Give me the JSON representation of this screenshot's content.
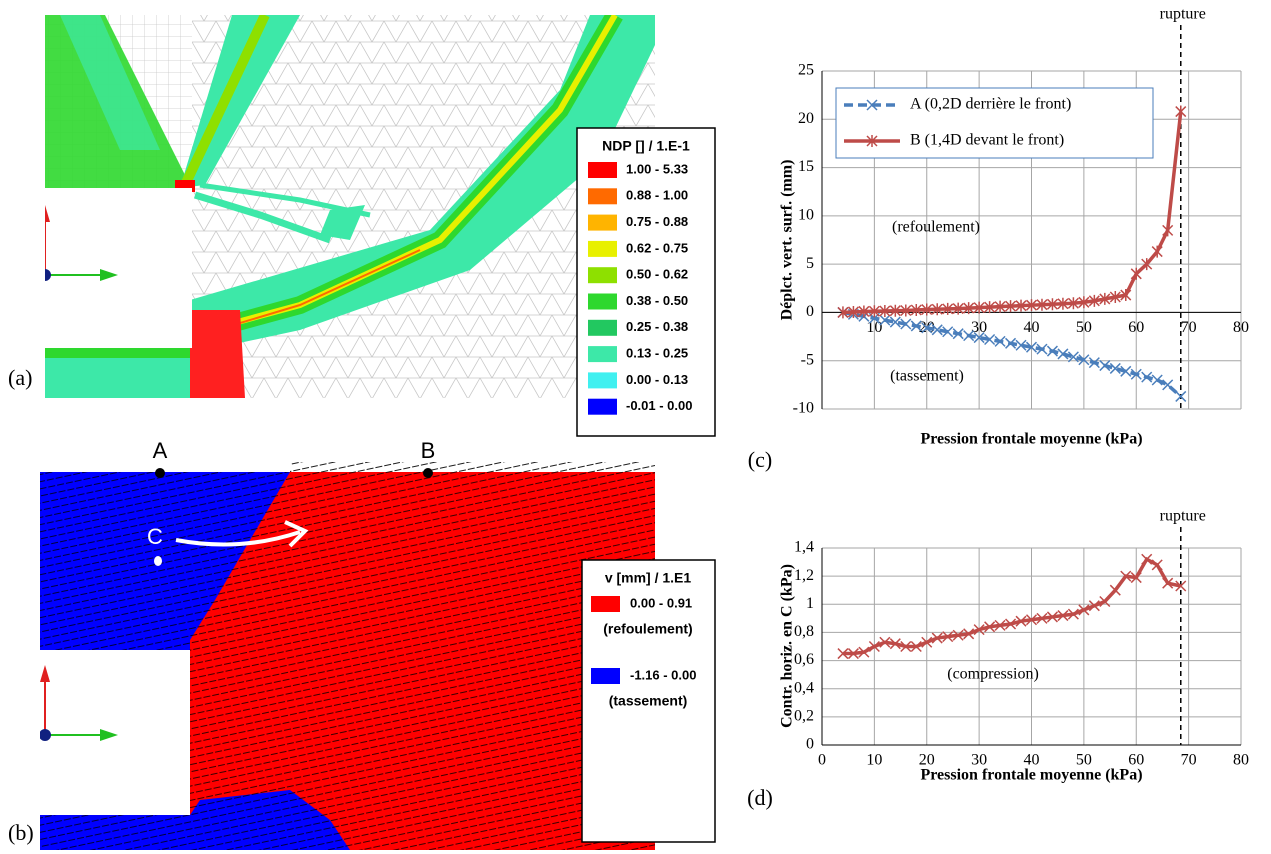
{
  "panels": [
    {
      "label": "(a)",
      "legend": {
        "title": "NDP [] / 1.E-1",
        "entries": [
          {
            "range": "1.00 - 5.33",
            "color": "#ff0000"
          },
          {
            "range": "0.88 - 1.00",
            "color": "#ff6a00"
          },
          {
            "range": "0.75 - 0.88",
            "color": "#ffb400"
          },
          {
            "range": "0.62 - 0.75",
            "color": "#e8f000"
          },
          {
            "range": "0.50 - 0.62",
            "color": "#8ee000"
          },
          {
            "range": "0.38 - 0.50",
            "color": "#2ed82e"
          },
          {
            "range": "0.25 - 0.38",
            "color": "#22c860"
          },
          {
            "range": "0.13 - 0.25",
            "color": "#3de8a8"
          },
          {
            "range": "0.00 - 0.13",
            "color": "#40f0f0"
          },
          {
            "range": "-0.01 - 0.00",
            "color": "#0000ff"
          }
        ]
      }
    },
    {
      "label": "(b)",
      "points": [
        "A",
        "B",
        "C"
      ],
      "legend": {
        "title": "v [mm] / 1.E1",
        "entries": [
          {
            "range": "0.00 - 0.91",
            "note": "(refoulement)",
            "color": "#ff0000"
          },
          {
            "range": "-1.16 - 0.00",
            "note": "(tassement)",
            "color": "#0000ff"
          }
        ]
      }
    }
  ],
  "chart_data": [
    {
      "type": "line",
      "panel_label": "(c)",
      "x_label": "Pression frontale moyenne (kPa)",
      "y_label": "Déplct. vert. surf. (mm)",
      "xlim": [
        0,
        80
      ],
      "xticks": [
        10,
        20,
        30,
        40,
        50,
        60,
        70,
        80
      ],
      "ylim": [
        -10,
        25
      ],
      "yticks": [
        -10,
        -5,
        0,
        5,
        10,
        15,
        20,
        25
      ],
      "grid": true,
      "legend": "upper left",
      "vline": {
        "x": 68.5,
        "label": "rupture"
      },
      "annotations": [
        "(refoulement)",
        "(tassement)"
      ],
      "x": [
        4,
        6,
        8,
        10,
        12,
        14,
        16,
        18,
        20,
        22,
        24,
        26,
        28,
        30,
        32,
        34,
        36,
        38,
        40,
        42,
        44,
        46,
        48,
        50,
        52,
        54,
        56,
        58,
        60,
        62,
        64,
        66,
        68.5
      ],
      "series": [
        {
          "name": "A (0,2D derrière le front)",
          "color": "#4a7ebb",
          "dashed": true,
          "marker": "x",
          "values": [
            0,
            -0.2,
            -0.4,
            -0.6,
            -0.8,
            -1.0,
            -1.2,
            -1.4,
            -1.6,
            -1.8,
            -2.0,
            -2.2,
            -2.4,
            -2.6,
            -2.8,
            -3.0,
            -3.2,
            -3.4,
            -3.6,
            -3.8,
            -4.0,
            -4.3,
            -4.6,
            -4.9,
            -5.2,
            -5.5,
            -5.8,
            -6.1,
            -6.4,
            -6.7,
            -7.0,
            -7.5,
            -8.7
          ]
        },
        {
          "name": "B (1,4D devant le front)",
          "color": "#be4b48",
          "dashed": false,
          "marker": "star",
          "values": [
            0,
            0.05,
            0.1,
            0.12,
            0.15,
            0.18,
            0.2,
            0.25,
            0.3,
            0.33,
            0.37,
            0.4,
            0.45,
            0.5,
            0.55,
            0.6,
            0.65,
            0.7,
            0.75,
            0.8,
            0.85,
            0.9,
            0.95,
            1.05,
            1.2,
            1.4,
            1.6,
            1.8,
            4,
            5,
            6.3,
            8.5,
            20.8
          ]
        }
      ]
    },
    {
      "type": "line",
      "panel_label": "(d)",
      "x_label": "Pression frontale moyenne (kPa)",
      "y_label": "Contr. horiz. en C (kPa)",
      "xlim": [
        0,
        80
      ],
      "xticks": [
        0,
        10,
        20,
        30,
        40,
        50,
        60,
        70,
        80
      ],
      "ylim": [
        0,
        1.4
      ],
      "yticks": [
        0,
        {
          "value": 0.2,
          "label": "0,2"
        },
        {
          "value": 0.4,
          "label": "0,4"
        },
        {
          "value": 0.6,
          "label": "0,6"
        },
        {
          "value": 0.8,
          "label": "0,8"
        },
        1,
        {
          "value": 1.2,
          "label": "1,2"
        },
        {
          "value": 1.4,
          "label": "1,4"
        }
      ],
      "grid": true,
      "vline": {
        "x": 68.5,
        "label": "rupture"
      },
      "annotations": [
        "(compression)"
      ],
      "x": [
        4,
        6,
        8,
        10,
        12,
        14,
        16,
        18,
        20,
        22,
        24,
        26,
        28,
        30,
        32,
        34,
        36,
        38,
        40,
        42,
        44,
        46,
        48,
        50,
        52,
        54,
        56,
        58,
        60,
        62,
        64,
        66,
        68.5
      ],
      "series": [
        {
          "color": "#be4b48",
          "dashed": false,
          "marker": "x",
          "values": [
            0.65,
            0.65,
            0.66,
            0.7,
            0.73,
            0.72,
            0.7,
            0.7,
            0.73,
            0.76,
            0.77,
            0.78,
            0.79,
            0.82,
            0.84,
            0.85,
            0.86,
            0.88,
            0.89,
            0.9,
            0.91,
            0.92,
            0.93,
            0.96,
            0.99,
            1.02,
            1.1,
            1.2,
            1.19,
            1.32,
            1.28,
            1.15,
            1.13
          ]
        }
      ]
    }
  ]
}
